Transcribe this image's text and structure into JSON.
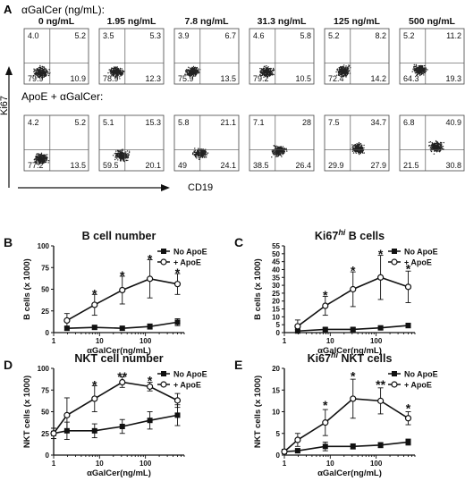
{
  "panel_a": {
    "letter": "A",
    "row1_title": "αGalCer (ng/mL):",
    "row2_title": "ApoE + αGalCer:",
    "y_label": "Ki67",
    "x_label": "CD19",
    "concentrations": [
      "0 ng/mL",
      "1.95 ng/mL",
      "7.8 ng/mL",
      "31.3 ng/mL",
      "125 ng/mL",
      "500 ng/mL"
    ],
    "row1": [
      {
        "ul": "4.0",
        "ur": "5.2",
        "ll": "79.9",
        "lr": "10.9"
      },
      {
        "ul": "3.5",
        "ur": "5.3",
        "ll": "78.9",
        "lr": "12.3"
      },
      {
        "ul": "3.9",
        "ur": "6.7",
        "ll": "75.9",
        "lr": "13.5"
      },
      {
        "ul": "4.6",
        "ur": "5.8",
        "ll": "79.2",
        "lr": "10.5"
      },
      {
        "ul": "5.2",
        "ur": "8.2",
        "ll": "72.4",
        "lr": "14.2"
      },
      {
        "ul": "5.2",
        "ur": "11.2",
        "ll": "64.3",
        "lr": "19.3"
      }
    ],
    "row2": [
      {
        "ul": "4.2",
        "ur": "5.2",
        "ll": "77.2",
        "lr": "13.5"
      },
      {
        "ul": "5.1",
        "ur": "15.3",
        "ll": "59.5",
        "lr": "20.1"
      },
      {
        "ul": "5.8",
        "ur": "21.1",
        "ll": "49",
        "lr": "24.1"
      },
      {
        "ul": "7.1",
        "ur": "28",
        "ll": "38.5",
        "lr": "26.4"
      },
      {
        "ul": "7.5",
        "ur": "34.7",
        "ll": "29.9",
        "lr": "27.9"
      },
      {
        "ul": "6.8",
        "ur": "40.9",
        "ll": "21.5",
        "lr": "30.8"
      }
    ]
  },
  "chart_data": [
    {
      "letter": "B",
      "type": "line",
      "title": "B cell number",
      "xlabel": "αGalCer(ng/mL)",
      "ylabel": "B cells (x 1000)",
      "xscale": "log",
      "xlim": [
        1,
        700
      ],
      "xticks": [
        "1",
        "10",
        "100"
      ],
      "ylim": [
        0,
        100
      ],
      "yticks": [
        "0",
        "25",
        "50",
        "75",
        "100"
      ],
      "x": [
        1.95,
        7.8,
        31.3,
        125,
        500
      ],
      "series": [
        {
          "name": "No ApoE",
          "values": [
            5,
            6,
            5,
            7,
            12
          ],
          "errors": [
            2,
            2,
            2,
            3,
            4
          ],
          "marker": "square"
        },
        {
          "name": "+ ApoE",
          "values": [
            14,
            32,
            49,
            62,
            56
          ],
          "errors": [
            8,
            12,
            16,
            22,
            12
          ],
          "marker": "circle"
        }
      ],
      "annotations": [
        {
          "x": 7.8,
          "y": 46,
          "text": "*"
        },
        {
          "x": 31.3,
          "y": 67,
          "text": "*"
        },
        {
          "x": 125,
          "y": 86,
          "text": "*"
        },
        {
          "x": 500,
          "y": 70,
          "text": "*"
        }
      ],
      "legend": "top-right"
    },
    {
      "letter": "C",
      "type": "line",
      "title": "Ki67hi B cells",
      "title_main": "Ki67",
      "title_sup": "hi",
      "title_rest": " B cells",
      "xlabel": "αGalCer(ng/mL)",
      "ylabel": "B cells (x 1000)",
      "xscale": "log",
      "xlim": [
        1,
        700
      ],
      "xticks": [
        "1",
        "10",
        "100"
      ],
      "ylim": [
        0,
        55
      ],
      "yticks": [
        "0",
        "5",
        "10",
        "15",
        "20",
        "25",
        "30",
        "35",
        "40",
        "45",
        "50",
        "55"
      ],
      "x": [
        1.95,
        7.8,
        31.3,
        125,
        500
      ],
      "series": [
        {
          "name": "No ApoE",
          "values": [
            1,
            2,
            2,
            3,
            4.5
          ],
          "errors": [
            1,
            1,
            1,
            1,
            1.5
          ],
          "marker": "square"
        },
        {
          "name": "+ ApoE",
          "values": [
            4,
            17,
            27.5,
            35,
            29
          ],
          "errors": [
            4,
            6,
            11,
            14,
            10
          ],
          "marker": "circle"
        }
      ],
      "annotations": [
        {
          "x": 7.8,
          "y": 24.5,
          "text": "*"
        },
        {
          "x": 31.3,
          "y": 40,
          "text": "*"
        },
        {
          "x": 125,
          "y": 50.5,
          "text": "*"
        },
        {
          "x": 500,
          "y": 41,
          "text": "*"
        }
      ],
      "legend": "top-right"
    },
    {
      "letter": "D",
      "type": "line",
      "title": "NKT cell number",
      "xlabel": "αGalCer(ng/mL)",
      "ylabel": "NKT cells (x 1000)",
      "xscale": "log",
      "xlim": [
        1,
        700
      ],
      "xticks": [
        "1",
        "10",
        "100"
      ],
      "ylim": [
        0,
        100
      ],
      "yticks": [
        "0",
        "25",
        "50",
        "75",
        "100"
      ],
      "x": [
        1,
        1.95,
        7.8,
        31.3,
        125,
        500
      ],
      "series": [
        {
          "name": "No ApoE",
          "values": [
            25,
            28,
            28,
            33,
            40,
            46
          ],
          "errors": [
            6,
            10,
            8,
            8,
            10,
            12
          ],
          "marker": "square"
        },
        {
          "name": "+ ApoE",
          "values": [
            25,
            46,
            65,
            84,
            79,
            63
          ],
          "errors": [
            6,
            20,
            15,
            6,
            5,
            8
          ],
          "marker": "circle"
        }
      ],
      "annotations": [
        {
          "x": 7.8,
          "y": 82,
          "text": "*"
        },
        {
          "x": 31.3,
          "y": 92,
          "text": "**"
        },
        {
          "x": 125,
          "y": 87,
          "text": "*"
        }
      ],
      "legend": "top-right"
    },
    {
      "letter": "E",
      "type": "line",
      "title": "Ki67hi NKT cells",
      "title_main": "Ki67",
      "title_sup": "hi",
      "title_rest": " NKT cells",
      "xlabel": "αGalCer(ng/mL)",
      "ylabel": "NKT cells (x 1000)",
      "xscale": "log",
      "xlim": [
        1,
        700
      ],
      "xticks": [
        "1",
        "10",
        "100"
      ],
      "ylim": [
        0,
        20
      ],
      "yticks": [
        "0",
        "5",
        "10",
        "15",
        "20"
      ],
      "x": [
        1,
        1.95,
        7.8,
        31.3,
        125,
        500
      ],
      "series": [
        {
          "name": "No ApoE",
          "values": [
            0.8,
            1,
            2,
            2,
            2.3,
            3
          ],
          "errors": [
            0.5,
            0.5,
            1,
            0.6,
            0.6,
            0.7
          ],
          "marker": "square"
        },
        {
          "name": "+ ApoE",
          "values": [
            0.8,
            3.5,
            7.5,
            13,
            12.5,
            8.5
          ],
          "errors": [
            0.5,
            1.5,
            3,
            4.5,
            3,
            1.5
          ],
          "marker": "circle"
        }
      ],
      "annotations": [
        {
          "x": 7.8,
          "y": 11.8,
          "text": "*"
        },
        {
          "x": 31.3,
          "y": 18.5,
          "text": "*"
        },
        {
          "x": 125,
          "y": 16.5,
          "text": "**"
        },
        {
          "x": 500,
          "y": 11,
          "text": "*"
        }
      ],
      "legend": "top-right"
    }
  ]
}
